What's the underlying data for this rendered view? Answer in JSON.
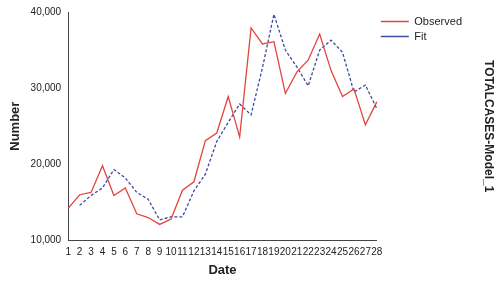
{
  "chart_data": {
    "type": "line",
    "x_label": "Date",
    "y_label": "Number",
    "right_title": "TOTALCASES-Model_1",
    "categories": [
      "1",
      "2",
      "3",
      "4",
      "5",
      "6",
      "7",
      "8",
      "9",
      "10",
      "11",
      "12",
      "13",
      "14",
      "15",
      "16",
      "17",
      "18",
      "19",
      "20",
      "21",
      "22",
      "23",
      "24",
      "25",
      "26",
      "27",
      "28"
    ],
    "series": [
      {
        "name": "Observed",
        "color": "#e3443d",
        "line_style": "solid",
        "values": [
          14200,
          16000,
          16300,
          19800,
          15900,
          16900,
          13500,
          13000,
          12100,
          12800,
          16600,
          17700,
          23100,
          24100,
          28900,
          23600,
          37900,
          35800,
          36100,
          29300,
          32100,
          33700,
          37100,
          32300,
          28900,
          29900,
          25200,
          28200
        ]
      },
      {
        "name": "Fit",
        "color": "#3b4ba0",
        "line_style": "dashed",
        "values": [
          null,
          14600,
          15900,
          16900,
          19300,
          18200,
          16300,
          15400,
          12700,
          13100,
          13100,
          16500,
          18700,
          23000,
          25500,
          27900,
          26500,
          32700,
          39700,
          35000,
          32800,
          30300,
          35000,
          36300,
          34700,
          29500,
          30400,
          27300
        ]
      }
    ],
    "ylim": [
      10000,
      40000
    ],
    "yticks": [
      {
        "value": 10000,
        "label": "10,000"
      },
      {
        "value": 20000,
        "label": "20,000"
      },
      {
        "value": 30000,
        "label": "30,000"
      },
      {
        "value": 40000,
        "label": "40,000"
      }
    ],
    "grid": false,
    "legend": "right"
  }
}
